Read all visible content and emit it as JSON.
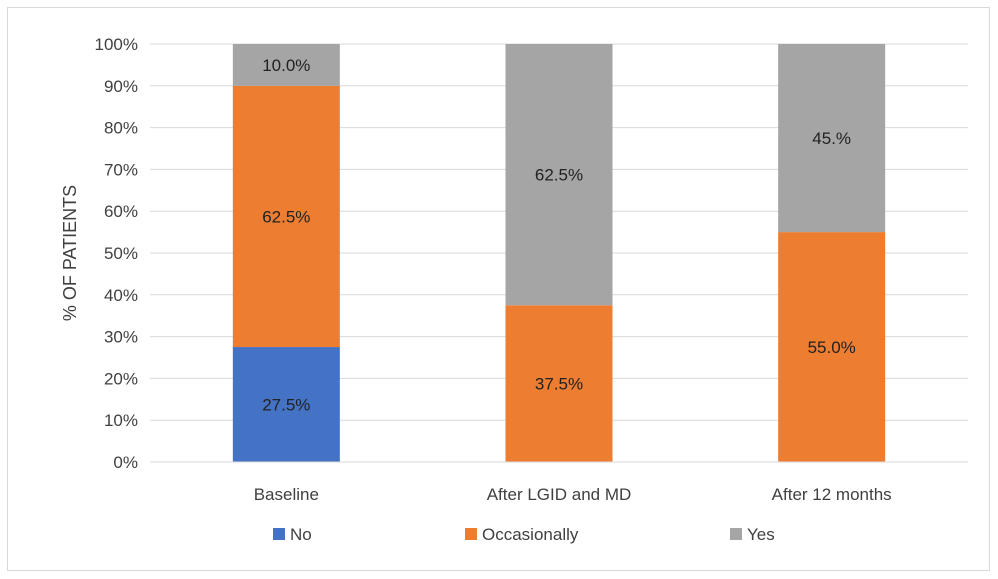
{
  "chart_data": {
    "type": "bar",
    "stacked": true,
    "percent": true,
    "title": "",
    "xlabel": "",
    "ylabel": "% OF PATIENTS",
    "ylim": [
      0,
      100
    ],
    "yticks": [
      "0%",
      "10%",
      "20%",
      "30%",
      "40%",
      "50%",
      "60%",
      "70%",
      "80%",
      "90%",
      "100%"
    ],
    "categories": [
      "Baseline",
      "After LGID and MD",
      "After 12 months"
    ],
    "series": [
      {
        "name": "No",
        "color": "#4472c4",
        "values": [
          27.5,
          0,
          0
        ],
        "labels": [
          "27.5%",
          "",
          ""
        ]
      },
      {
        "name": "Occasionally",
        "color": "#ed7d31",
        "values": [
          62.5,
          37.5,
          55.0
        ],
        "labels": [
          "62.5%",
          "37.5%",
          "55.0%"
        ]
      },
      {
        "name": "Yes",
        "color": "#a5a5a5",
        "values": [
          10.0,
          62.5,
          45.0
        ],
        "labels": [
          "10.0%",
          "62.5%",
          "45.%"
        ]
      }
    ],
    "grid": true,
    "legend_position": "bottom"
  }
}
